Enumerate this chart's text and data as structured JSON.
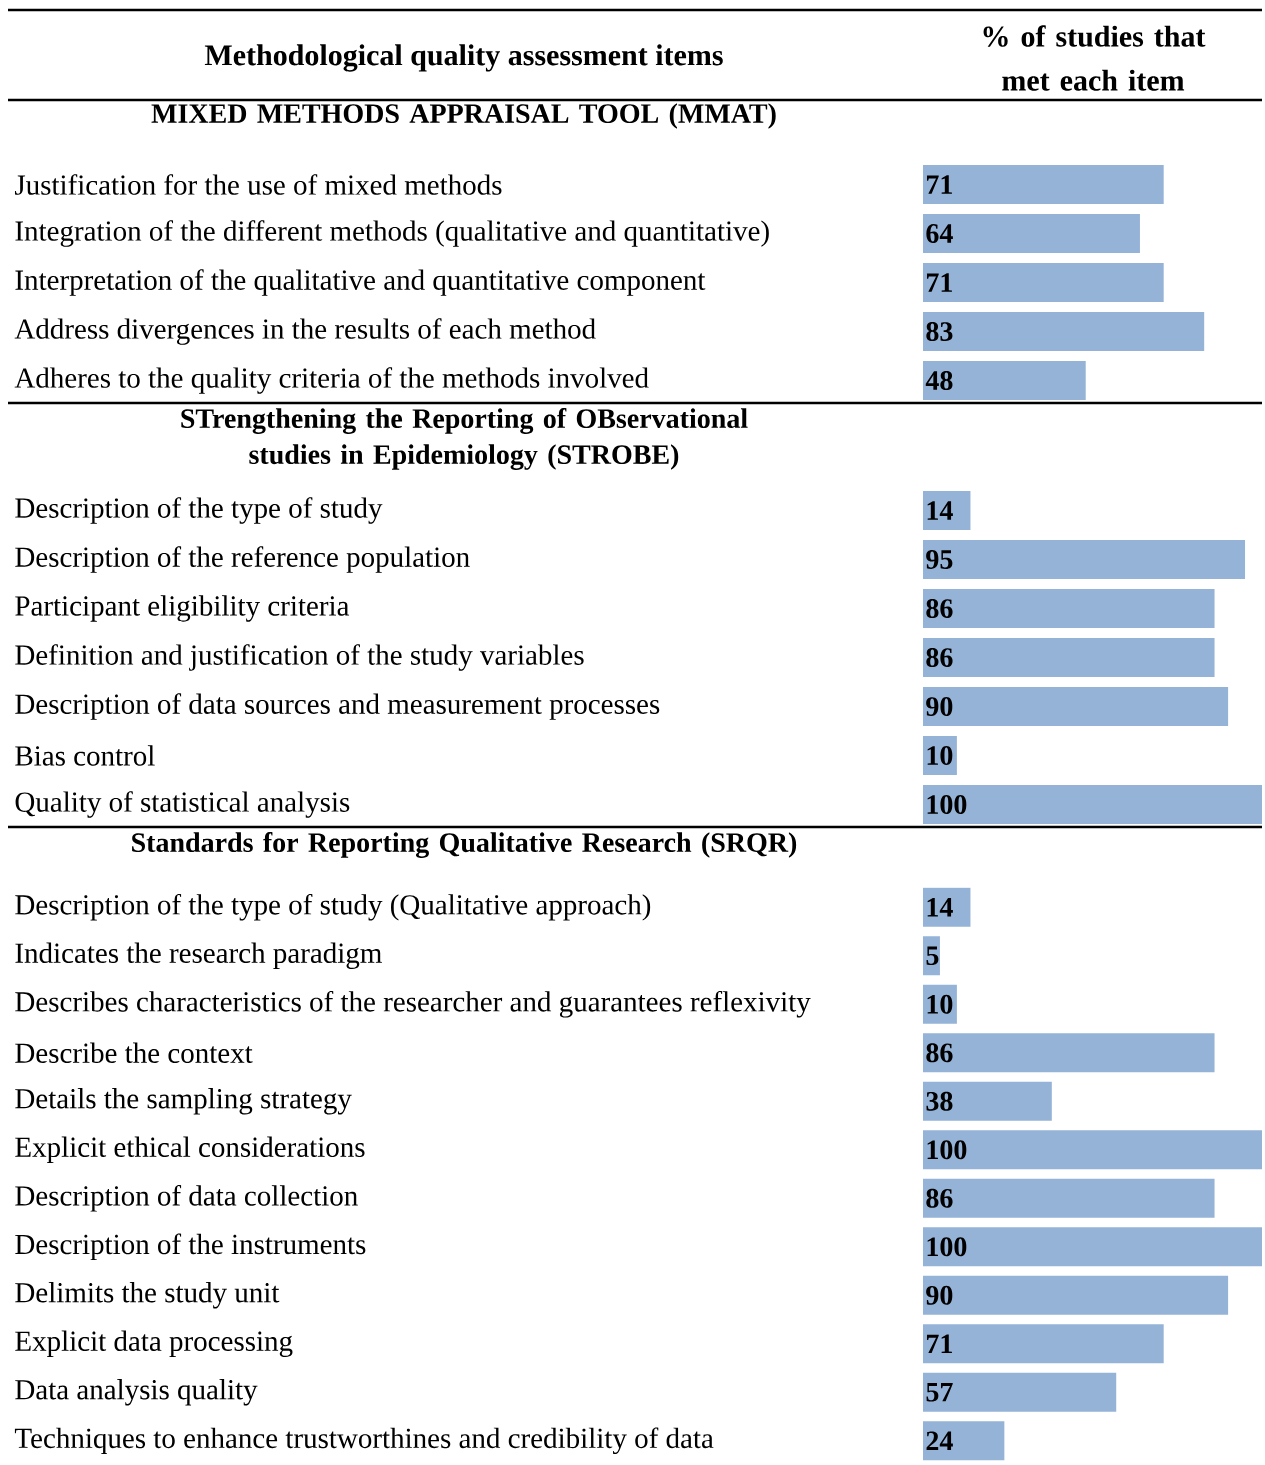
{
  "chart_data": [
    {
      "type": "bar",
      "orientation": "horizontal",
      "title": "MIXED METHODS APPRAISAL TOOL (MMAT)",
      "ylabel": "Methodological quality assessment items",
      "xlabel": "% of studies that met each item",
      "categories": [
        "Justification for the use of mixed methods",
        "Integration of the different methods (qualitative and quantitative)",
        "Interpretation of the qualitative and quantitative component",
        "Address divergences in the results of each method",
        "Adheres to the quality criteria of the methods involved"
      ],
      "values": [
        71,
        64,
        71,
        83,
        48
      ],
      "color": "#95b3d7",
      "data_labels": true,
      "xlim": [
        0,
        100
      ]
    },
    {
      "type": "bar",
      "orientation": "horizontal",
      "title": "STrengthening the Reporting of OBservational studies in Epidemiology (STROBE)",
      "categories": [
        "Description of the type of study",
        "Description of the reference population",
        "Participant eligibility criteria",
        "Definition and justification of the study variables",
        "Description of data sources and measurement processes",
        "Bias control",
        "Quality of statistical analysis"
      ],
      "values": [
        14,
        95,
        86,
        86,
        90,
        10,
        100
      ],
      "color": "#95b3d7",
      "data_labels": true,
      "xlim": [
        0,
        100
      ]
    },
    {
      "type": "bar",
      "orientation": "horizontal",
      "title": "Standards for Reporting Qualitative Research (SRQR)",
      "categories": [
        "Description of the type of study (Qualitative approach)",
        "Indicates the research paradigm",
        "Describes characteristics of the researcher and guarantees reflexivity",
        "Describe the context",
        "Details the sampling strategy",
        "Explicit ethical considerations",
        "Description of data collection",
        "Description of the instruments",
        "Delimits the study unit",
        "Explicit data processing",
        "Data analysis quality",
        "Techniques to enhance trustworthines and credibility of data"
      ],
      "values": [
        14,
        5,
        10,
        86,
        38,
        100,
        86,
        100,
        90,
        71,
        57,
        24
      ],
      "color": "#95b3d7",
      "data_labels": true,
      "xlim": [
        0,
        100
      ]
    }
  ]
}
